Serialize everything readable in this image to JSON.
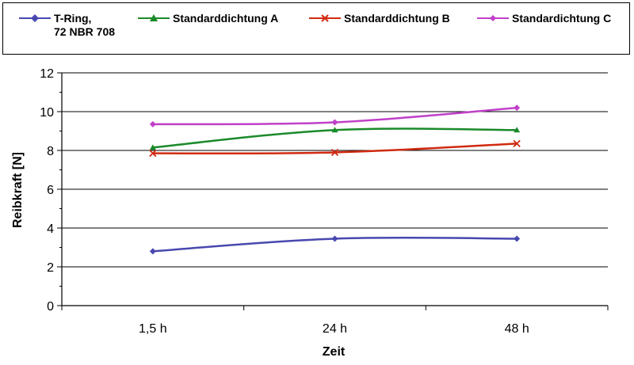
{
  "chart_data": {
    "type": "line",
    "categories": [
      "1,5 h",
      "24 h",
      "48 h"
    ],
    "xlabel": "Zeit",
    "ylabel": "Reibkraft  [N]",
    "ylim": [
      0,
      12
    ],
    "yticks": [
      "0",
      "2",
      "4",
      "6",
      "8",
      "10",
      "12"
    ],
    "grid": true,
    "legend_position": "top",
    "series": [
      {
        "name": "T-Ring,\n72 NBR 708",
        "values": [
          2.8,
          3.45,
          3.45
        ],
        "color": "#4848b0",
        "marker": "diamond"
      },
      {
        "name": "Standarddichtung A",
        "values": [
          8.15,
          9.05,
          9.05
        ],
        "color": "#1a8a2a",
        "marker": "triangle"
      },
      {
        "name": "Standarddichtung B",
        "values": [
          7.85,
          7.9,
          8.35
        ],
        "color": "#d02a10",
        "marker": "x"
      },
      {
        "name": "Standardichtung C",
        "values": [
          9.35,
          9.45,
          10.2
        ],
        "color": "#c040c8",
        "marker": "diamond"
      }
    ]
  }
}
